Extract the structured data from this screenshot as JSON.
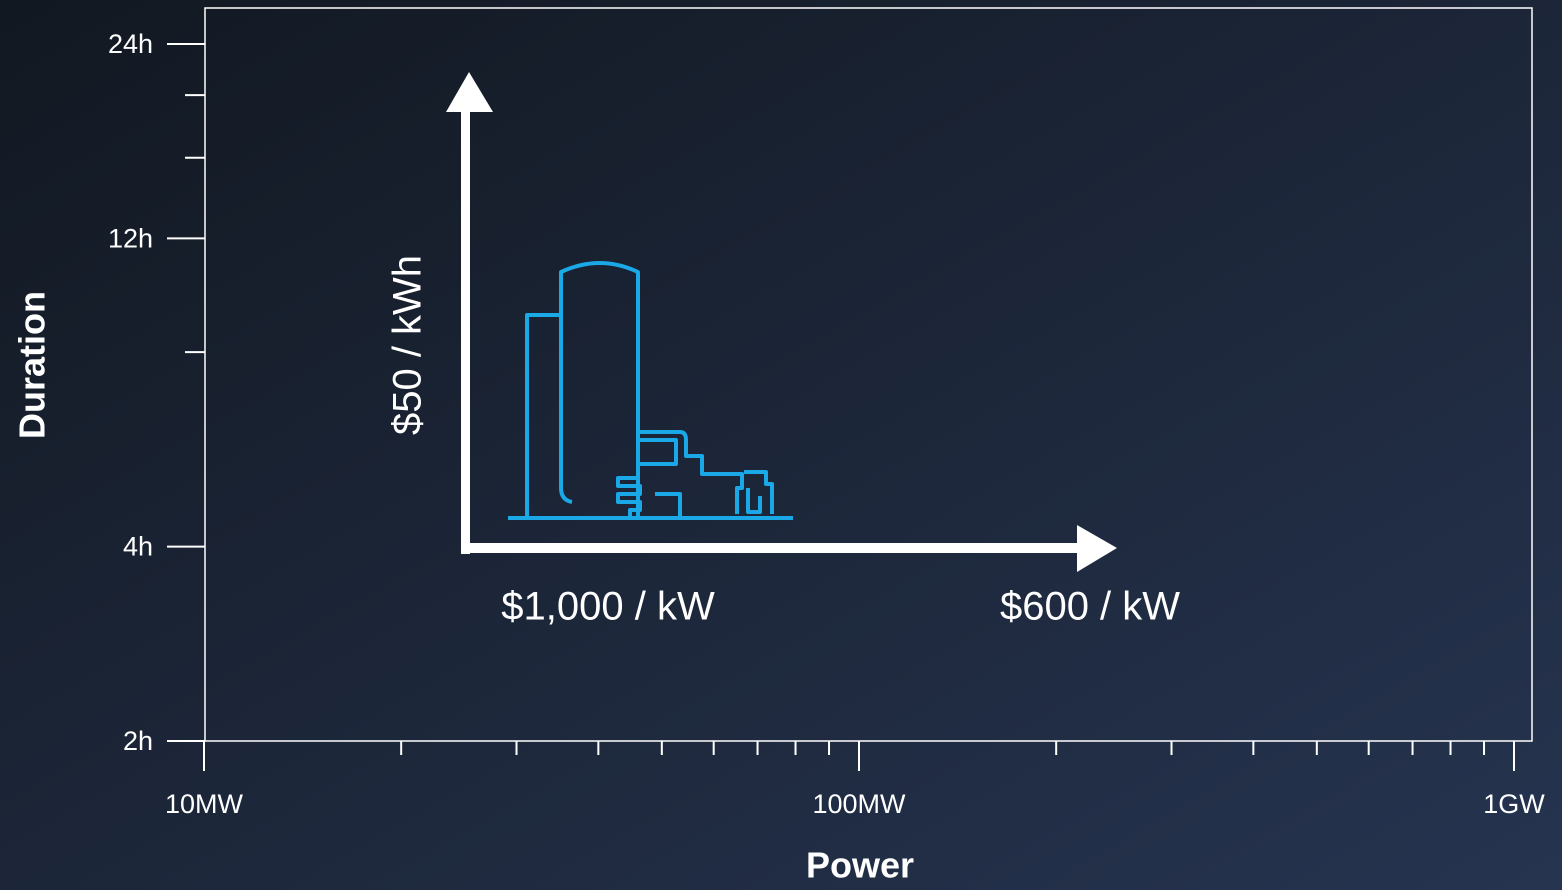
{
  "chart_data": {
    "type": "log-axes",
    "xlabel": "Power",
    "ylabel": "Duration",
    "xscale": "log",
    "yscale": "log",
    "xlim": [
      10,
      1000
    ],
    "ylim": [
      2,
      24
    ],
    "xticks": [
      {
        "value": 10,
        "label": "10MW"
      },
      {
        "value": 100,
        "label": "100MW"
      },
      {
        "value": 1000,
        "label": "1GW"
      }
    ],
    "xminor_ticks": [
      20,
      30,
      40,
      50,
      60,
      70,
      80,
      90,
      200,
      300,
      400,
      500,
      600,
      700,
      800,
      900
    ],
    "yticks": [
      {
        "value": 2,
        "label": "2h"
      },
      {
        "value": 4,
        "label": "4h"
      },
      {
        "value": 12,
        "label": "12h"
      },
      {
        "value": 24,
        "label": "24h"
      }
    ],
    "yminor_ticks": [
      8,
      16,
      20
    ],
    "annotations": [
      "$50 / kWh",
      "$1,000 / kW",
      "$600 / kW"
    ]
  }
}
